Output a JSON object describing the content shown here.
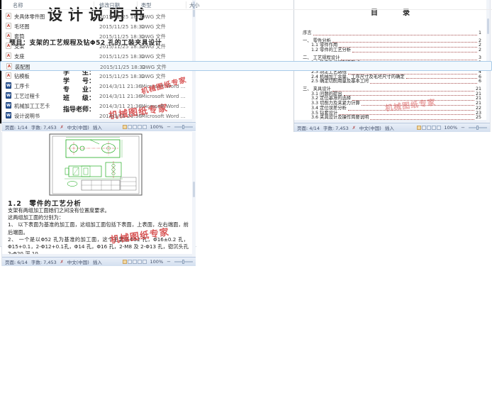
{
  "watermark_text": "机械图纸专家",
  "icons": {
    "dwg_glyph": "A",
    "word_glyph": "W",
    "spellcheck_glyph": "✗",
    "zoom_out_glyph": "−"
  },
  "colors": {
    "watermark": "#d23a3a",
    "cad_green": "#00c000",
    "cad_teal": "#1f8f8f",
    "cad_yellow": "#c8c820",
    "cad_magenta": "#cc44cc",
    "cad_red": "#cc2222",
    "cad_cyan": "#22cccc",
    "preview_green": "#00a000",
    "preview_red": "#cc2020"
  },
  "cover": {
    "title": "设计说明书",
    "topic": "题目：支架的工艺规程及钻Φ52 孔的工装夹具设计",
    "fields": [
      "学　　生：",
      "学　　号：",
      "专　　业：",
      "班　　级：",
      "指导老师："
    ],
    "status": {
      "page": "页面: 1/14",
      "words": "字数: 7,453",
      "lang": "中文(中国)",
      "mode": "插入",
      "zoom": "100%"
    }
  },
  "toc": {
    "title": "目　　录",
    "entries": [
      {
        "label": "序言",
        "page": "1",
        "level": 0,
        "gap": true
      },
      {
        "label": "一、 零件分析",
        "page": "2",
        "level": 0,
        "gap": true
      },
      {
        "label": "1.1 零件作用",
        "page": "2",
        "level": 1
      },
      {
        "label": "1.2 零件的工艺分析",
        "page": "2",
        "level": 1
      },
      {
        "label": "二、 工艺规程设计",
        "page": "3",
        "level": 0,
        "gap": true
      },
      {
        "label": "2.1 确定毛坯的制造形式",
        "page": "3",
        "level": 1
      },
      {
        "label": "2.2 基面的选择",
        "page": "3",
        "level": 1
      },
      {
        "label": "2.3 制定工艺路线",
        "page": "4",
        "level": 1
      },
      {
        "label": "2.4 机械加工余量、工序尺寸及毛坯尺寸的确定",
        "page": "6",
        "level": 1
      },
      {
        "label": "2.5 确定切削用量及基本工时",
        "page": "6",
        "level": 1
      },
      {
        "label": "三、 夹具设计",
        "page": "21",
        "level": 0,
        "gap": true
      },
      {
        "label": "3.1 问题的提出",
        "page": "21",
        "level": 1
      },
      {
        "label": "3.2 定位基准的选择",
        "page": "21",
        "level": 1
      },
      {
        "label": "3.3 切削力及夹紧力计算",
        "page": "21",
        "level": 1
      },
      {
        "label": "3.4 定位误差分析",
        "page": "22",
        "level": 1
      },
      {
        "label": "3.5 钻套设计",
        "page": "23",
        "level": 1
      },
      {
        "label": "3.6 夹具设计及操作简要说明",
        "page": "25",
        "level": 1
      }
    ],
    "status": {
      "page": "页面: 4/14",
      "words": "字数: 7,453",
      "lang": "中文(中国)",
      "mode": "插入",
      "zoom": "100%"
    }
  },
  "analysis": {
    "heading": "1.2　零件的工艺分析",
    "paragraphs": [
      "支架有两组加工面她们之间没有位置度要求。",
      "这两组加工面的分别为：",
      "1、 以下表面为基准的加工面，这组加工面包括下表面，上表面，左右端面，前后端面。",
      "2、 一个是以Φ52 孔为基准的加工面，这个主要是Φ52 孔，Φ16±0.2 孔，Φ15+0.1，2-Φ12+0.1孔，Φ14 孔，Φ16 孔，2-M8 及 2-Φ13 孔，锪沉头孔 2-Φ20 深 10。"
    ],
    "status": {
      "page": "页面: 6/14",
      "words": "字数: 7,453",
      "lang": "中文(中国)",
      "mode": "插入",
      "zoom": "100%"
    }
  },
  "explorer": {
    "columns": [
      "名称",
      "修改日期",
      "类型",
      "大小"
    ],
    "files": [
      {
        "name": "夹具体零件图",
        "date": "2015/11/25 18:32",
        "type": "DWG 文件",
        "icon": "dwg",
        "selected": false
      },
      {
        "name": "毛坯图",
        "date": "2015/11/25 18:32",
        "type": "DWG 文件",
        "icon": "dwg",
        "selected": false
      },
      {
        "name": "套筒",
        "date": "2015/11/25 18:32",
        "type": "DWG 文件",
        "icon": "dwg",
        "selected": false
      },
      {
        "name": "支架",
        "date": "2015/11/25 18:32",
        "type": "DWG 文件",
        "icon": "dwg",
        "selected": false
      },
      {
        "name": "支座",
        "date": "2015/11/25 18:32",
        "type": "DWG 文件",
        "icon": "dwg",
        "selected": false
      },
      {
        "name": "装配图",
        "date": "2015/11/25 18:32",
        "type": "DWG 文件",
        "icon": "dwg",
        "selected": true
      },
      {
        "name": "钻模板",
        "date": "2015/11/25 18:32",
        "type": "DWG 文件",
        "icon": "dwg",
        "selected": false
      },
      {
        "name": "工序卡",
        "date": "2014/3/11 21:36",
        "type": "Microsoft Word ...",
        "icon": "word",
        "selected": false
      },
      {
        "name": "工艺过程卡",
        "date": "2014/3/11 21:36",
        "type": "Microsoft Word ...",
        "icon": "word",
        "selected": false
      },
      {
        "name": "机械加工工艺卡",
        "date": "2014/3/11 21:36",
        "type": "Microsoft Word ...",
        "icon": "word",
        "selected": false
      },
      {
        "name": "设计说明书",
        "date": "2014/3/11 21:36",
        "type": "Microsoft Word ...",
        "icon": "word",
        "selected": false
      }
    ]
  }
}
